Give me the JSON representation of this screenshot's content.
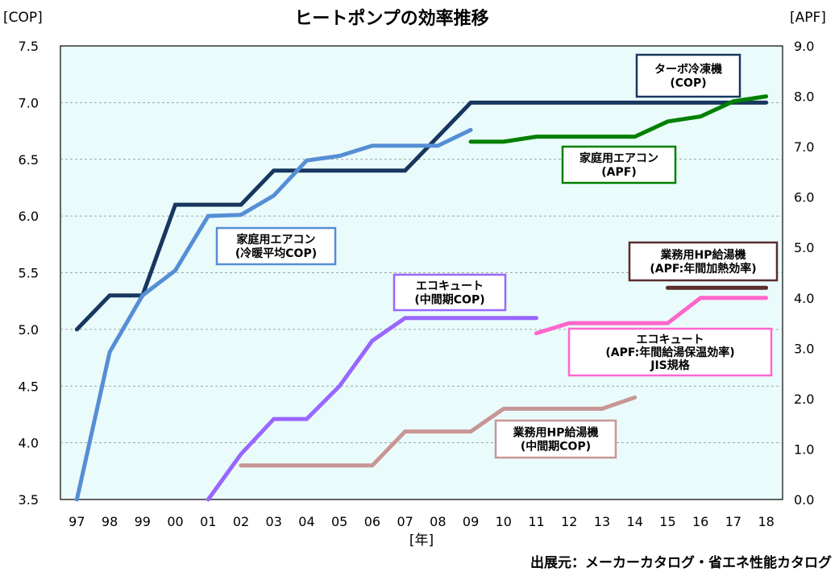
{
  "chart_data": {
    "type": "line",
    "title": "ヒートポンプの効率推移",
    "xlabel": "[年]",
    "ylabel_left": "[COP]",
    "ylabel_right": "[APF]",
    "categories": [
      "97",
      "98",
      "99",
      "00",
      "01",
      "02",
      "03",
      "04",
      "05",
      "06",
      "07",
      "08",
      "09",
      "10",
      "11",
      "12",
      "13",
      "14",
      "15",
      "16",
      "17",
      "18"
    ],
    "ylim_left": [
      3.5,
      7.5
    ],
    "yticks_left": [
      "3.5",
      "4.0",
      "4.5",
      "5.0",
      "5.5",
      "6.0",
      "6.5",
      "7.0",
      "7.5"
    ],
    "ylim_right": [
      0.0,
      9.0
    ],
    "yticks_right": [
      "0.0",
      "1.0",
      "2.0",
      "3.0",
      "4.0",
      "5.0",
      "6.0",
      "7.0",
      "8.0",
      "9.0"
    ],
    "grid": true,
    "source": "出展元：メーカーカタログ・省エネ性能カタログ",
    "series": [
      {
        "name": "ターボ冷凍機 (COP)",
        "axis": "left",
        "color": "#17375E",
        "label_lines": [
          "ターボ冷凍機",
          "(COP)"
        ],
        "x": [
          "97",
          "98",
          "99",
          "00",
          "01",
          "02",
          "03",
          "04",
          "05",
          "06",
          "07",
          "08",
          "09",
          "10",
          "11",
          "12",
          "13",
          "14",
          "15",
          "16",
          "17",
          "18"
        ],
        "values": [
          5.0,
          5.3,
          5.3,
          6.1,
          6.1,
          6.1,
          6.4,
          6.4,
          6.4,
          6.4,
          6.4,
          6.7,
          7.0,
          7.0,
          7.0,
          7.0,
          7.0,
          7.0,
          7.0,
          7.0,
          7.0,
          7.0
        ]
      },
      {
        "name": "家庭用エアコン (冷暖平均COP)",
        "axis": "left",
        "color": "#558ED5",
        "label_lines": [
          "家庭用エアコン",
          "(冷暖平均COP)"
        ],
        "x": [
          "97",
          "98",
          "99",
          "00",
          "01",
          "02",
          "03",
          "04",
          "05",
          "06",
          "07",
          "08",
          "09"
        ],
        "values": [
          3.5,
          4.8,
          5.3,
          5.52,
          6.0,
          6.01,
          6.18,
          6.49,
          6.53,
          6.62,
          6.62,
          6.62,
          6.76
        ]
      },
      {
        "name": "家庭用エアコン (APF)",
        "axis": "right",
        "color": "#008000",
        "label_lines": [
          "家庭用エアコン",
          "(APF)"
        ],
        "x": [
          "09",
          "10",
          "11",
          "12",
          "13",
          "14",
          "15",
          "16",
          "17",
          "18"
        ],
        "values": [
          7.1,
          7.1,
          7.2,
          7.2,
          7.2,
          7.2,
          7.5,
          7.6,
          7.9,
          8.0
        ]
      },
      {
        "name": "業務用HP給湯機 (APF:年間加熱効率)",
        "axis": "right",
        "color": "#5A2D2D",
        "label_lines": [
          "業務用HP給湯機",
          "(APF:年間加熱効率)"
        ],
        "x": [
          "15",
          "16",
          "17",
          "18"
        ],
        "values": [
          4.2,
          4.2,
          4.2,
          4.2
        ]
      },
      {
        "name": "エコキュート (中間期COP)",
        "axis": "left",
        "color": "#9966FF",
        "label_lines": [
          "エコキュート",
          "(中間期COP)"
        ],
        "x": [
          "01",
          "02",
          "03",
          "04",
          "05",
          "06",
          "07",
          "08",
          "09",
          "10",
          "11"
        ],
        "values": [
          3.5,
          3.9,
          4.21,
          4.21,
          4.5,
          4.9,
          5.1,
          5.1,
          5.1,
          5.1,
          5.1
        ]
      },
      {
        "name": "エコキュート (APF:年間給湯保温効率) JIS規格",
        "axis": "right",
        "color": "#FF66CC",
        "label_lines": [
          "エコキュート",
          "(APF:年間給湯保温効率)",
          "JIS規格"
        ],
        "x": [
          "11",
          "12",
          "13",
          "14",
          "15",
          "16",
          "17",
          "18"
        ],
        "values": [
          3.3,
          3.5,
          3.5,
          3.5,
          3.5,
          4.0,
          4.0,
          4.0
        ]
      },
      {
        "name": "業務用HP給湯機 (中間期COP)",
        "axis": "left",
        "color": "#C89696",
        "label_lines": [
          "業務用HP給湯機",
          "(中間期COP)"
        ],
        "x": [
          "02",
          "03",
          "04",
          "05",
          "06",
          "07",
          "08",
          "09",
          "10",
          "11",
          "12",
          "13",
          "14"
        ],
        "values": [
          3.8,
          3.8,
          3.8,
          3.8,
          3.8,
          4.1,
          4.1,
          4.1,
          4.3,
          4.3,
          4.3,
          4.3,
          4.4
        ]
      }
    ]
  }
}
